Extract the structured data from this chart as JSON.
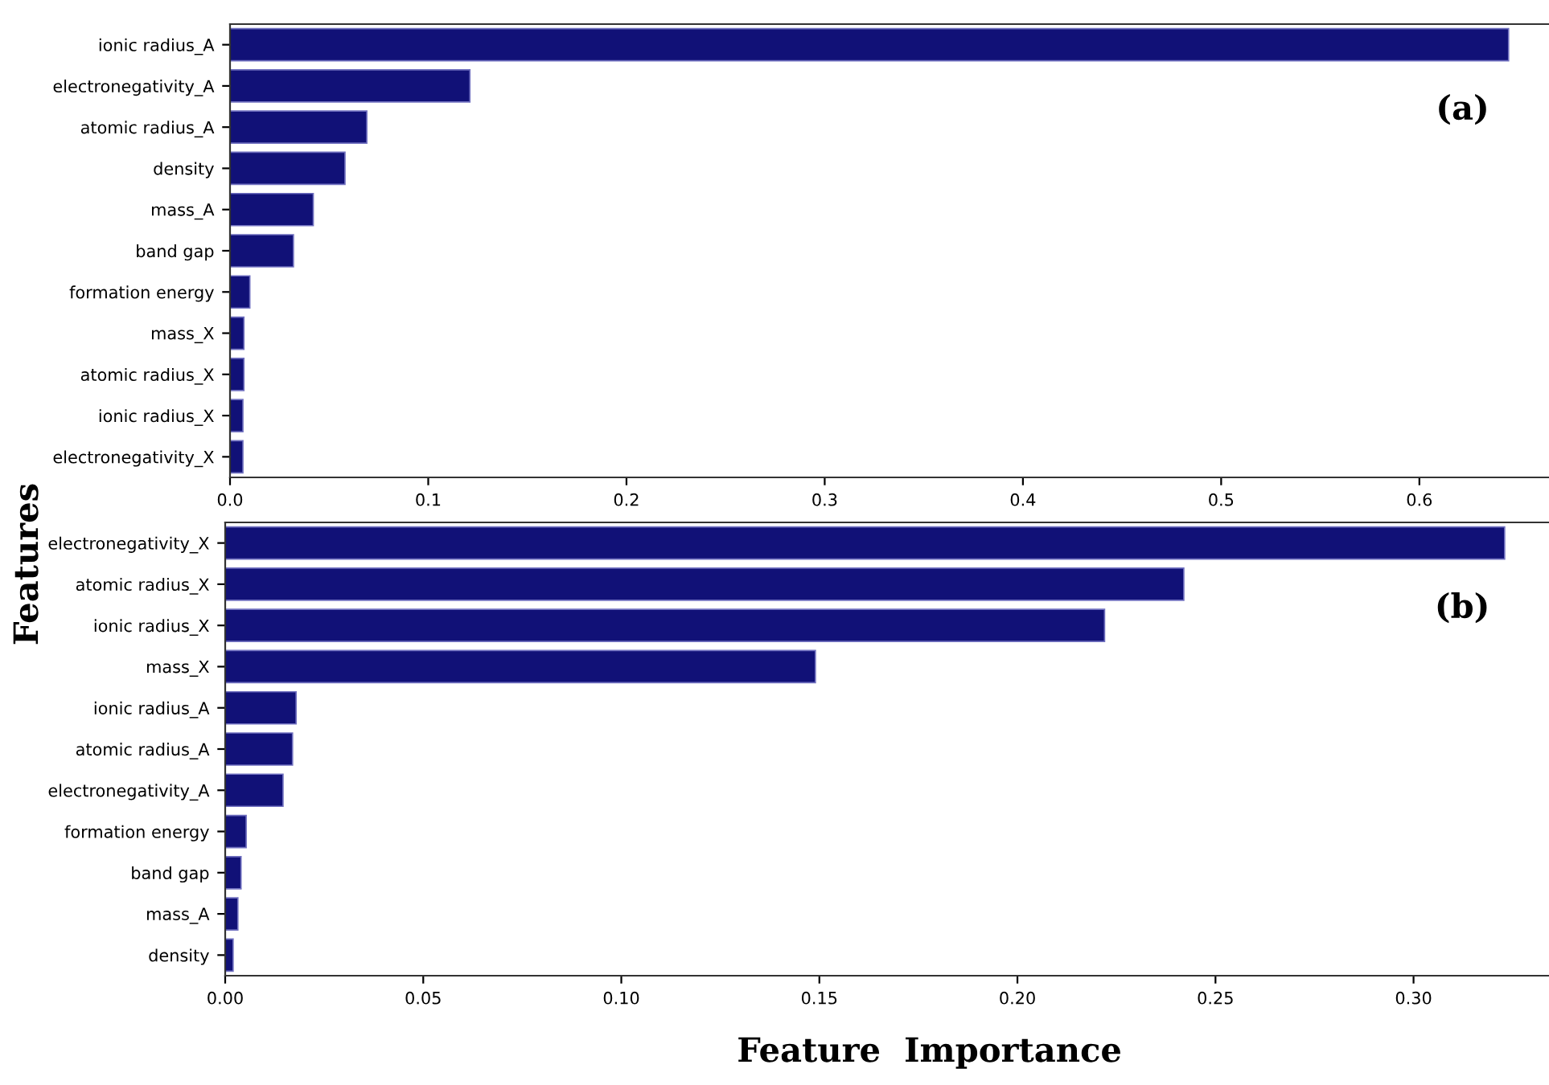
{
  "chart_data": [
    {
      "type": "bar",
      "orientation": "horizontal",
      "ylabel": "Features",
      "annotations": [
        "(a)"
      ],
      "color": "#111177",
      "categories": [
        "ionic radius_A",
        "electronegativity_A",
        "atomic radius_A",
        "density",
        "mass_A",
        "band gap",
        "formation energy",
        "mass_X",
        "atomic radius_X",
        "ionic radius_X",
        "electronegativity_X"
      ],
      "values": [
        0.645,
        0.121,
        0.069,
        0.058,
        0.042,
        0.032,
        0.01,
        0.007,
        0.007,
        0.0065,
        0.0065
      ],
      "xlim": [
        0,
        0.665
      ],
      "xticks": [
        {
          "value": 0,
          "label": "0.0"
        },
        0.1,
        0.2,
        0.3,
        0.4,
        0.5,
        0.6
      ],
      "grid": false
    },
    {
      "type": "bar",
      "orientation": "horizontal",
      "xlabel": "Feature  Importance",
      "annotations": [
        "(b)"
      ],
      "color": "#111177",
      "categories": [
        "electronegativity_X",
        "atomic radius_X",
        "ionic radius_X",
        "mass_X",
        "ionic radius_A",
        "atomic radius_A",
        "electronegativity_A",
        "formation energy",
        "band gap",
        "mass_A",
        "density"
      ],
      "values": [
        0.323,
        0.242,
        0.222,
        0.149,
        0.0179,
        0.017,
        0.0146,
        0.0053,
        0.004,
        0.0032,
        0.002
      ],
      "xlim": [
        0,
        0.334
      ],
      "xticks": [
        {
          "value": 0,
          "label": "0.00"
        },
        {
          "value": 0.05,
          "label": "0.05"
        },
        {
          "value": 0.1,
          "label": "0.10"
        },
        {
          "value": 0.15,
          "label": "0.15"
        },
        {
          "value": 0.2,
          "label": "0.20"
        },
        {
          "value": 0.25,
          "label": "0.25"
        },
        {
          "value": 0.3,
          "label": "0.30"
        }
      ],
      "grid": false
    }
  ]
}
